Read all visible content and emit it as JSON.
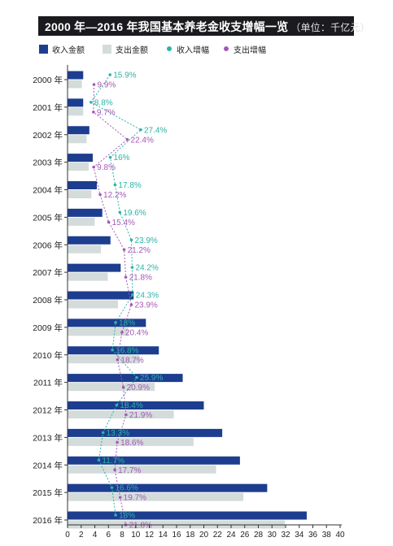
{
  "title": "2000 年—2016 年我国基本养老金收支增幅一览",
  "unit": "（单位：千亿元）",
  "colors": {
    "income_bar": "#1d3d8f",
    "expense_bar": "#d3dcda",
    "income_growth": "#2bb3a6",
    "expense_growth": "#a558b8",
    "axis": "#333333"
  },
  "legend": [
    {
      "label": "收入金额",
      "marker": "square",
      "color_key": "income_bar"
    },
    {
      "label": "支出金额",
      "marker": "square",
      "color_key": "expense_bar"
    },
    {
      "label": "收入增幅",
      "marker": "dot",
      "color_key": "income_growth"
    },
    {
      "label": "支出增幅",
      "marker": "dot",
      "color_key": "expense_growth"
    }
  ],
  "chart_data": {
    "type": "bar",
    "orientation": "horizontal",
    "categories": [
      "2000 年",
      "2001 年",
      "2002 年",
      "2003 年",
      "2004 年",
      "2005 年",
      "2006 年",
      "2007 年",
      "2008 年",
      "2009 年",
      "2010 年",
      "2011 年",
      "2012 年",
      "2013 年",
      "2014 年",
      "2015 年",
      "2016 年"
    ],
    "series": [
      {
        "name": "收入金额",
        "kind": "bar",
        "values": [
          2.3,
          2.3,
          3.2,
          3.7,
          4.3,
          5.1,
          6.3,
          7.8,
          9.7,
          11.5,
          13.4,
          16.9,
          20.0,
          22.7,
          25.3,
          29.3,
          35.1
        ]
      },
      {
        "name": "支出金额",
        "kind": "bar",
        "values": [
          2.1,
          2.3,
          2.8,
          3.1,
          3.5,
          4.0,
          4.9,
          5.9,
          7.4,
          8.9,
          10.6,
          12.8,
          15.6,
          18.5,
          21.8,
          25.8,
          31.9
        ]
      },
      {
        "name": "收入增幅",
        "kind": "line",
        "values": [
          15.9,
          8.8,
          27.4,
          16,
          17.8,
          19.6,
          23.9,
          24.2,
          24.3,
          18,
          16.8,
          25.9,
          18.4,
          13.3,
          11.7,
          16.6,
          18
        ],
        "labels": [
          "15.9%",
          "8.8%",
          "27.4%",
          "16%",
          "17.8%",
          "19.6%",
          "23.9%",
          "24.2%",
          "24.3%",
          "18%",
          "16.8%",
          "25.9%",
          "18.4%",
          "13.3%",
          "11.7%",
          "16.6%",
          "18%"
        ]
      },
      {
        "name": "支出增幅",
        "kind": "line",
        "values": [
          9.9,
          9.7,
          22.4,
          9.8,
          12.2,
          15.4,
          21.2,
          21.8,
          23.9,
          20.4,
          18.7,
          20.9,
          21.9,
          18.6,
          17.7,
          19.7,
          21.8
        ],
        "labels": [
          "9.9%",
          "9.7%",
          "22.4%",
          "9.8%",
          "12.2%",
          "15.4%",
          "21.2%",
          "21.8%",
          "23.9%",
          "20.4%",
          "18.7%",
          "20.9%",
          "21.9%",
          "18.6%",
          "17.7%",
          "19.7%",
          "21.8%"
        ]
      }
    ],
    "x_ticks": [
      0,
      2,
      4,
      6,
      8,
      10,
      12,
      14,
      16,
      18,
      20,
      22,
      24,
      26,
      28,
      30,
      32,
      34,
      36,
      38,
      40
    ],
    "xlim": [
      0,
      40
    ],
    "grid": false,
    "legend_position": "top-left"
  }
}
